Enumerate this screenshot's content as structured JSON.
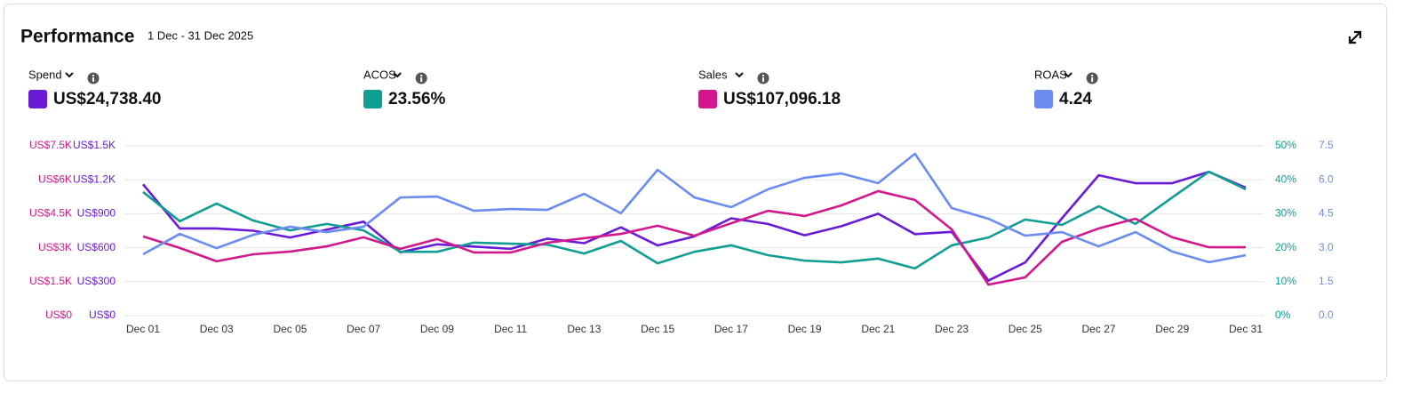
{
  "header": {
    "title": "Performance",
    "date_range": "1 Dec - 31 Dec 2025"
  },
  "chart_data": {
    "type": "line",
    "categories": [
      "Dec 01",
      null,
      "Dec 03",
      null,
      "Dec 05",
      null,
      "Dec 07",
      null,
      "Dec 09",
      null,
      "Dec 11",
      null,
      "Dec 13",
      null,
      "Dec 15",
      null,
      "Dec 17",
      null,
      "Dec 19",
      null,
      "Dec 21",
      null,
      "Dec 23",
      null,
      "Dec 25",
      null,
      "Dec 27",
      null,
      "Dec 29",
      null,
      "Dec 31"
    ],
    "series": [
      {
        "name": "Spend",
        "summary": "US$24,738.40",
        "color": "#6a1bd6",
        "axis": "y",
        "values": [
          1160,
          770,
          770,
          750,
          690,
          760,
          830,
          560,
          630,
          610,
          590,
          680,
          640,
          780,
          620,
          700,
          860,
          810,
          710,
          790,
          900,
          720,
          740,
          310,
          470,
          860,
          1240,
          1170,
          1170,
          1270,
          1130
        ]
      },
      {
        "name": "ACOS",
        "summary": "23.56%",
        "color": "#109e94",
        "axis": "y3",
        "values": [
          36.4,
          27.8,
          33.0,
          28.0,
          25.1,
          27.0,
          25.1,
          18.8,
          18.8,
          21.5,
          21.2,
          20.9,
          18.3,
          22.0,
          15.4,
          18.8,
          20.7,
          17.8,
          16.2,
          15.7,
          16.8,
          13.9,
          20.7,
          23.0,
          28.3,
          26.7,
          32.2,
          27.0,
          34.8,
          42.4,
          37.2
        ]
      },
      {
        "name": "Sales",
        "summary": "US$107,096.18",
        "color": "#d1198d",
        "axis": "y2",
        "values": [
          3500,
          2990,
          2400,
          2710,
          2830,
          3060,
          3460,
          2950,
          3380,
          2790,
          2790,
          3220,
          3420,
          3610,
          3970,
          3530,
          4080,
          4630,
          4400,
          4870,
          5500,
          5110,
          3810,
          1370,
          1690,
          3260,
          3850,
          4280,
          3460,
          3020,
          3020
        ]
      },
      {
        "name": "ROAS",
        "summary": "4.24",
        "color": "#6b8cf0",
        "axis": "y4",
        "values": [
          2.71,
          3.61,
          2.98,
          3.57,
          3.93,
          3.69,
          3.93,
          5.22,
          5.26,
          4.63,
          4.71,
          4.67,
          5.38,
          4.52,
          6.44,
          5.22,
          4.79,
          5.58,
          6.09,
          6.28,
          5.85,
          7.15,
          4.75,
          4.28,
          3.53,
          3.69,
          3.06,
          3.69,
          2.83,
          2.36,
          2.67
        ]
      }
    ],
    "ylim": [
      0,
      1500
    ],
    "yticks": [
      {
        "value": 0,
        "label": "US$0"
      },
      {
        "value": 300,
        "label": "US$300"
      },
      {
        "value": 600,
        "label": "US$600"
      },
      {
        "value": 900,
        "label": "US$900"
      },
      {
        "value": 1200,
        "label": "US$1.2K"
      },
      {
        "value": 1500,
        "label": "US$1.5K"
      }
    ],
    "y2lim": [
      0,
      7500
    ],
    "y2ticks": [
      {
        "value": 0,
        "label": "US$0"
      },
      {
        "value": 1500,
        "label": "US$1.5K"
      },
      {
        "value": 3000,
        "label": "US$3K"
      },
      {
        "value": 4500,
        "label": "US$4.5K"
      },
      {
        "value": 6000,
        "label": "US$6K"
      },
      {
        "value": 7500,
        "label": "US$7.5K"
      }
    ],
    "y3lim": [
      0,
      50
    ],
    "y3ticks": [
      {
        "value": 0,
        "label": "0%"
      },
      {
        "value": 10,
        "label": "10%"
      },
      {
        "value": 20,
        "label": "20%"
      },
      {
        "value": 30,
        "label": "30%"
      },
      {
        "value": 40,
        "label": "40%"
      },
      {
        "value": 50,
        "label": "50%"
      }
    ],
    "y4lim": [
      0,
      7.5
    ],
    "y4ticks": [
      {
        "value": 0,
        "label": "0.0"
      },
      1.5,
      {
        "value": 3,
        "label": "3.0"
      },
      4.5,
      {
        "value": 6,
        "label": "6.0"
      },
      7.5
    ],
    "grid": true
  }
}
